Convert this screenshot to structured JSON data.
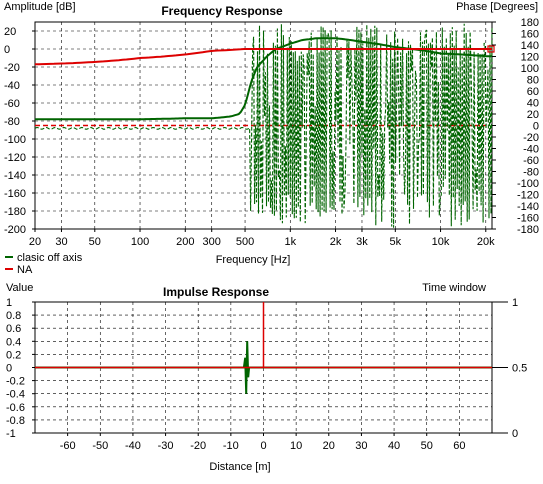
{
  "chart_data": [
    {
      "type": "line",
      "title": "Frequency Response",
      "xlabel": "Frequency [Hz]",
      "ylabel": "Amplitude [dB]",
      "y2label": "Phase [Degrees]",
      "xscale": "log",
      "xlim": [
        20,
        22000
      ],
      "ylim": [
        -200,
        30
      ],
      "y2lim": [
        -180,
        180
      ],
      "x_ticks": [
        20,
        30,
        50,
        100,
        200,
        300,
        500,
        1000,
        2000,
        3000,
        5000,
        10000,
        20000
      ],
      "x_tick_labels": [
        "20",
        "30",
        "50",
        "100",
        "200",
        "300",
        "500",
        "1k",
        "2k",
        "3k",
        "5k",
        "10k",
        "20k"
      ],
      "y_ticks": [
        20,
        0,
        -20,
        -40,
        -60,
        -80,
        -100,
        -120,
        -140,
        -160,
        -180,
        -200
      ],
      "y2_ticks": [
        180,
        160,
        140,
        120,
        100,
        80,
        60,
        40,
        20,
        0,
        -20,
        -40,
        -60,
        -80,
        -100,
        -120,
        -140,
        -160,
        -180
      ],
      "grid": true,
      "legend_position": "bottom-left",
      "series": [
        {
          "name": "clasic off axis",
          "color": "#006400",
          "amplitude": {
            "x": [
              20,
              100,
              200,
              300,
              400,
              460,
              500,
              550,
              600,
              700,
              800,
              1000,
              1200,
              1500,
              2000,
              3000,
              5000,
              10000,
              20000
            ],
            "y": [
              -78,
              -78,
              -77,
              -77,
              -75,
              -72,
              -62,
              -36,
              -20,
              -8,
              0,
              6,
              10,
              12,
              12,
              8,
              2,
              -5,
              -8
            ]
          },
          "phase_swings_from_hz": 540,
          "phase_range": [
            -180,
            180
          ]
        },
        {
          "name": "NA",
          "color": "#dd0000",
          "amplitude": {
            "x": [
              20,
              100,
              300,
              500,
              1000,
              20000
            ],
            "y": [
              -17,
              -10,
              -2,
              0,
              0,
              0
            ]
          },
          "phase": {
            "x": [
              20,
              20000
            ],
            "y": [
              0,
              0
            ]
          }
        }
      ]
    },
    {
      "type": "line",
      "title": "Impulse Response",
      "xlabel": "Distance [m]",
      "ylabel": "Value",
      "y2label": "Time window",
      "xlim": [
        -70,
        70
      ],
      "ylim": [
        -1,
        1
      ],
      "x_ticks": [
        -60,
        -50,
        -40,
        -30,
        -20,
        -10,
        0,
        10,
        20,
        30,
        40,
        50,
        60
      ],
      "y_ticks": [
        1,
        0.8,
        0.6,
        0.4,
        0.2,
        0,
        -0.2,
        -0.4,
        -0.6,
        -0.8,
        -1
      ],
      "y_tick_labels": [
        "1",
        "0.8",
        "0.6",
        "0.4",
        "0.2",
        "0",
        "-0.2",
        "-0.4",
        "-0.6",
        "-0.8",
        "-1"
      ],
      "y2_ticks": [
        1,
        0.5,
        0
      ],
      "y2_tick_labels": [
        "1",
        "0.5",
        "0"
      ],
      "grid": true,
      "series": [
        {
          "name": "clasic off axis",
          "color": "#006400",
          "x": [
            -70,
            -6,
            -5.6,
            -5.3,
            -5.0,
            -4.7,
            -4.4,
            70
          ],
          "y": [
            0,
            0,
            0.15,
            -0.4,
            0.4,
            -0.15,
            0,
            0
          ]
        },
        {
          "name": "NA",
          "color": "#dd0000",
          "x": [
            -70,
            0,
            0,
            0,
            70
          ],
          "y": [
            0,
            0,
            1,
            0,
            0
          ]
        }
      ]
    }
  ]
}
